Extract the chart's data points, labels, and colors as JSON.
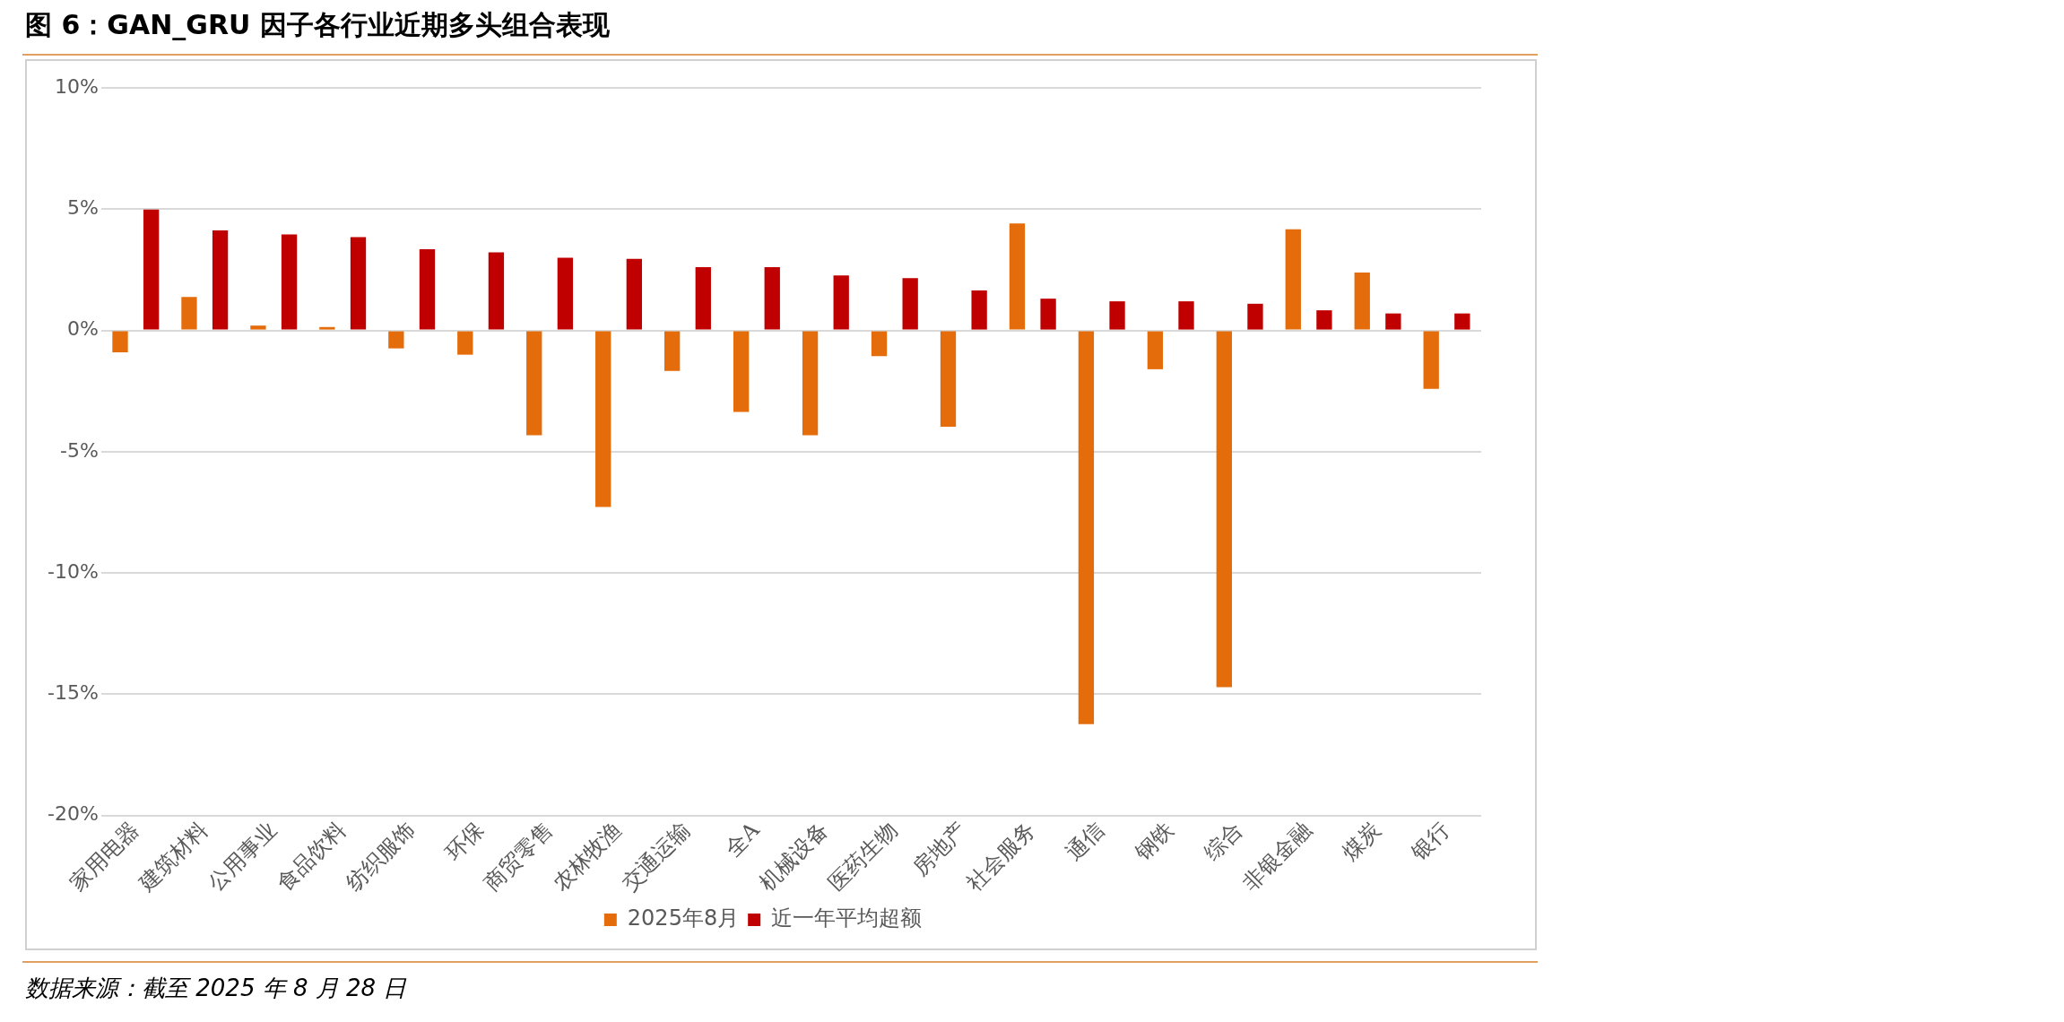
{
  "chart_data": {
    "type": "bar",
    "title": "图 6：GAN_GRU 因子各行业近期多头组合表现",
    "categories": [
      "家用电器",
      "建筑材料",
      "公用事业",
      "食品饮料",
      "纺织服饰",
      "环保",
      "商贸零售",
      "农林牧渔",
      "交通运输",
      "全A",
      "机械设备",
      "医药生物",
      "房地产",
      "社会服务",
      "通信",
      "钢铁",
      "综合",
      "非银金融",
      "煤炭",
      "银行"
    ],
    "series": [
      {
        "name": "2025年8月",
        "color": "#e46c0a",
        "values": [
          -0.9,
          1.38,
          0.2,
          0.14,
          -0.74,
          -1.0,
          -4.32,
          -7.28,
          -1.67,
          -3.36,
          -4.32,
          -1.06,
          -3.97,
          4.41,
          -16.23,
          -1.6,
          -14.71,
          4.17,
          2.39,
          -2.41
        ]
      },
      {
        "name": "近一年平均超额",
        "color": "#c00000",
        "values": [
          4.98,
          4.12,
          3.96,
          3.85,
          3.35,
          3.22,
          3.0,
          2.95,
          2.61,
          2.61,
          2.27,
          2.16,
          1.65,
          1.31,
          1.2,
          1.2,
          1.1,
          0.83,
          0.7,
          0.7
        ]
      }
    ],
    "ylim": [
      -20,
      10
    ],
    "yticks": [
      {
        "value": -20,
        "label": "-20%"
      },
      {
        "value": -15,
        "label": "-15%"
      },
      {
        "value": -10,
        "label": "-10%"
      },
      {
        "value": -5,
        "label": "-5%"
      },
      {
        "value": 0,
        "label": "0%"
      },
      {
        "value": 5,
        "label": "5%"
      },
      {
        "value": 10,
        "label": "10%"
      }
    ],
    "grid": "y",
    "legend": "bottom",
    "annotations": [
      "数据来源：截至 2025 年 8 月 28 日"
    ]
  }
}
